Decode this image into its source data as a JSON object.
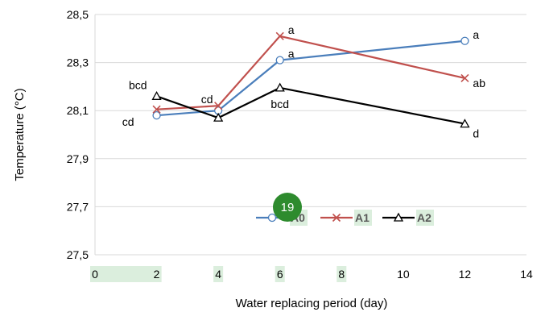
{
  "chart_data": {
    "type": "line",
    "title": "",
    "xlabel": "Water replacing period (day)",
    "ylabel": "Temperature (°C)",
    "xlim": [
      0,
      14
    ],
    "ylim": [
      27.5,
      28.5
    ],
    "x_ticks": [
      "0",
      "2",
      "4",
      "6",
      "8",
      "10",
      "12",
      "14"
    ],
    "y_ticks": [
      "27,5",
      "27,7",
      "27,9",
      "28,1",
      "28,3",
      "28,5"
    ],
    "grid": "horizontal",
    "legend_position": "lower-right-inside",
    "series": [
      {
        "name": "A0",
        "color": "#4a7ebb",
        "marker": "circle",
        "x": [
          2,
          4,
          6,
          12
        ],
        "values": [
          28.08,
          28.1,
          28.31,
          28.39
        ],
        "labels": [
          "cd",
          "cd",
          "a",
          "a"
        ]
      },
      {
        "name": "A1",
        "color": "#c0504d",
        "marker": "x",
        "x": [
          2,
          4,
          6,
          12
        ],
        "values": [
          28.105,
          28.12,
          28.41,
          28.235
        ],
        "labels": [
          "",
          "",
          "a",
          "ab"
        ]
      },
      {
        "name": "A2",
        "color": "#000000",
        "marker": "triangle",
        "x": [
          2,
          4,
          6,
          12
        ],
        "values": [
          28.16,
          28.07,
          28.195,
          28.045
        ],
        "labels": [
          "bcd",
          "",
          "bcd",
          "d"
        ]
      }
    ],
    "highlighted_x_ticks": [
      "0",
      "2",
      "4",
      "6",
      "8"
    ],
    "highlighted_legend_entries": [
      "A0",
      "A1",
      "A2"
    ],
    "badge": {
      "label": "19",
      "color": "#2e8b2e"
    }
  }
}
